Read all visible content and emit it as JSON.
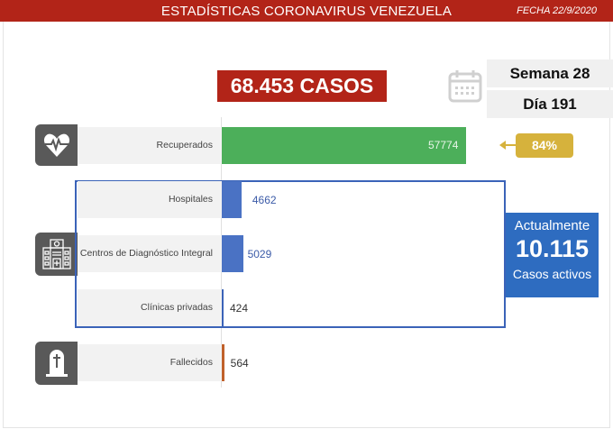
{
  "header": {
    "title": "ESTADÍSTICAS CORONAVIRUS VENEZUELA",
    "date": "FECHA 22/9/2020"
  },
  "total_cases": "68.453 CASOS",
  "week": "Semana 28",
  "day": "Día 191",
  "recovered_percent": "84%",
  "active": {
    "top": "Actualmente",
    "value": "10.115",
    "bottom": "Casos activos"
  },
  "colors": {
    "header": "#b22418",
    "recovered": "#4caf5a",
    "active": "#4a72c4",
    "deaths": "#c0612b",
    "badge": "#d6b23c"
  },
  "chart_data": {
    "type": "bar",
    "orientation": "horizontal",
    "categories": [
      "Recuperados",
      "Hospitales",
      "Centros de Diagnóstico Integral",
      "Clínicas privadas",
      "Fallecidos"
    ],
    "values": [
      57774,
      4662,
      5029,
      424,
      564
    ],
    "labels": [
      "57774",
      "4662",
      "5029",
      "424",
      "564"
    ],
    "colors": [
      "#4caf5a",
      "#4a72c4",
      "#4a72c4",
      "#3b63b8",
      "#c0612b"
    ],
    "grid": false
  }
}
